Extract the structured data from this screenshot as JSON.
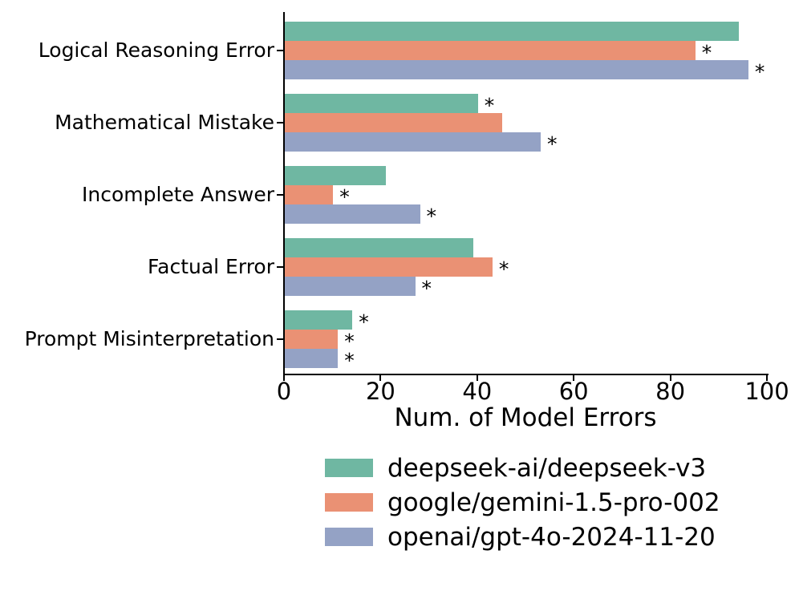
{
  "chart_data": {
    "type": "bar",
    "orientation": "horizontal",
    "title": "",
    "xlabel": "Num. of Model Errors",
    "ylabel": "",
    "xlim": [
      0,
      100
    ],
    "x_ticks": [
      {
        "value": 0,
        "label": "0"
      },
      {
        "value": 20,
        "label": "20"
      },
      {
        "value": 40,
        "label": "40"
      },
      {
        "value": 60,
        "label": "60"
      },
      {
        "value": 80,
        "label": "80"
      },
      {
        "value": 100,
        "label": "100"
      }
    ],
    "grid": false,
    "legend_position": "below-axis-right",
    "significance_marker": "*",
    "categories": [
      "Logical Reasoning Error",
      "Mathematical Mistake",
      "Incomplete Answer",
      "Factual Error",
      "Prompt Misinterpretation"
    ],
    "series": [
      {
        "name": "deepseek-ai/deepseek-v3",
        "color": "#6fb7a2",
        "values": [
          94,
          40,
          21,
          39,
          14
        ],
        "significant": [
          false,
          true,
          false,
          false,
          true
        ]
      },
      {
        "name": "google/gemini-1.5-pro-002",
        "color": "#ea9174",
        "values": [
          85,
          45,
          10,
          43,
          11
        ],
        "significant": [
          true,
          false,
          true,
          true,
          true
        ]
      },
      {
        "name": "openai/gpt-4o-2024-11-20",
        "color": "#94a2c5",
        "values": [
          96,
          53,
          28,
          27,
          11
        ],
        "significant": [
          true,
          true,
          true,
          true,
          true
        ]
      }
    ]
  }
}
